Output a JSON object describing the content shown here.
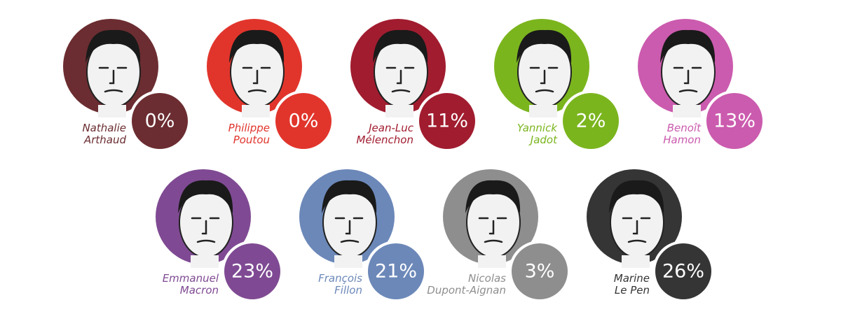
{
  "candidates": [
    {
      "name": [
        "Nathalie",
        "Arthaud"
      ],
      "share": "0%",
      "color": "#6b2d31"
    },
    {
      "name": [
        "Philippe",
        "Poutou"
      ],
      "share": "0%",
      "color": "#e1352c"
    },
    {
      "name": [
        "Jean-Luc",
        "Mélenchon"
      ],
      "share": "11%",
      "color": "#a11c2f"
    },
    {
      "name": [
        "Yannick",
        "Jadot"
      ],
      "share": "2%",
      "color": "#7bb51e"
    },
    {
      "name": [
        "Benoît",
        "Hamon"
      ],
      "share": "13%",
      "color": "#cb5bae"
    },
    {
      "name": [
        "Emmanuel",
        "Macron"
      ],
      "share": "23%",
      "color": "#7f4a93"
    },
    {
      "name": [
        "François",
        "Fillon"
      ],
      "share": "21%",
      "color": "#6c88b9"
    },
    {
      "name": [
        "Nicolas",
        "Dupont-Aignan"
      ],
      "share": "3%",
      "color": "#8e8e8e"
    },
    {
      "name": [
        "Marine",
        "Le Pen"
      ],
      "share": "26%",
      "color": "#353535"
    }
  ]
}
